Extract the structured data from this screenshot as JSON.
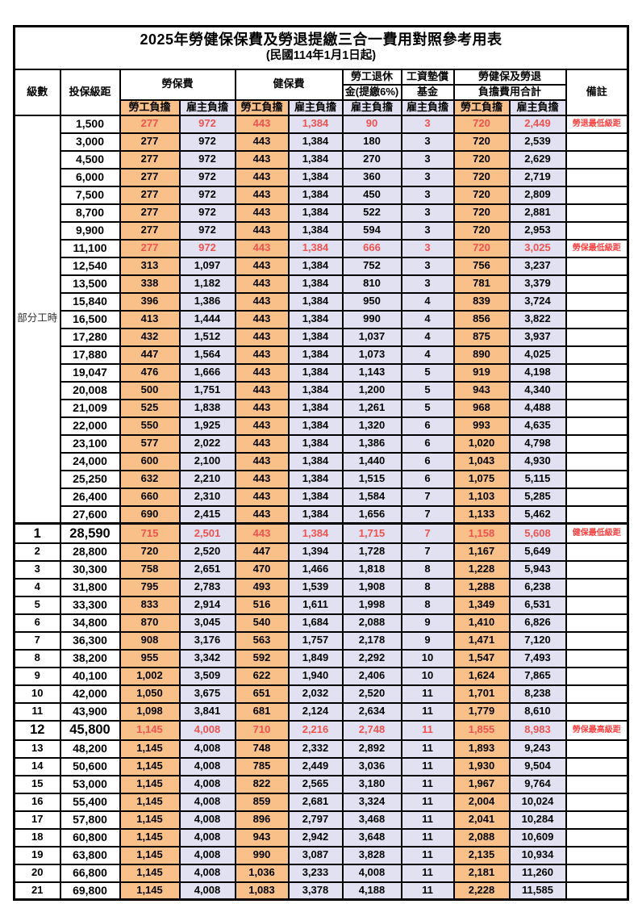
{
  "title": "2025年勞健保保費及勞退提繳三合一費用對照參考用表",
  "subtitle": "(民國114年1月1日起)",
  "header": {
    "level": "級數",
    "bracket": "投保級距",
    "labor_ins": "勞保費",
    "health_ins": "健保費",
    "pension_line1": "勞工退休",
    "pension_line2": "金(提繳6%)",
    "wage_fund_line1": "工資墊償",
    "wage_fund_line2": "基金",
    "total_line1": "勞健保及勞退",
    "total_line2": "負擔費用合計",
    "note": "備註",
    "worker": "勞工負擔",
    "employer": "雇主負擔"
  },
  "part_time_label": "部分工時",
  "colors": {
    "worker_bg": "#F9C189",
    "employer_bg": "#E2E1F1",
    "highlight_red": "#EF5350",
    "note_red": "#FF4040"
  },
  "rows": [
    {
      "lv": "",
      "br": "1,500",
      "lw": "277",
      "le": "972",
      "hw": "443",
      "he": "1,384",
      "pe": "90",
      "fe": "3",
      "tw": "720",
      "te": "2,449",
      "note": "勞退最低級距",
      "hl": true
    },
    {
      "lv": "",
      "br": "3,000",
      "lw": "277",
      "le": "972",
      "hw": "443",
      "he": "1,384",
      "pe": "180",
      "fe": "3",
      "tw": "720",
      "te": "2,539",
      "note": ""
    },
    {
      "lv": "",
      "br": "4,500",
      "lw": "277",
      "le": "972",
      "hw": "443",
      "he": "1,384",
      "pe": "270",
      "fe": "3",
      "tw": "720",
      "te": "2,629",
      "note": ""
    },
    {
      "lv": "",
      "br": "6,000",
      "lw": "277",
      "le": "972",
      "hw": "443",
      "he": "1,384",
      "pe": "360",
      "fe": "3",
      "tw": "720",
      "te": "2,719",
      "note": ""
    },
    {
      "lv": "",
      "br": "7,500",
      "lw": "277",
      "le": "972",
      "hw": "443",
      "he": "1,384",
      "pe": "450",
      "fe": "3",
      "tw": "720",
      "te": "2,809",
      "note": ""
    },
    {
      "lv": "",
      "br": "8,700",
      "lw": "277",
      "le": "972",
      "hw": "443",
      "he": "1,384",
      "pe": "522",
      "fe": "3",
      "tw": "720",
      "te": "2,881",
      "note": ""
    },
    {
      "lv": "",
      "br": "9,900",
      "lw": "277",
      "le": "972",
      "hw": "443",
      "he": "1,384",
      "pe": "594",
      "fe": "3",
      "tw": "720",
      "te": "2,953",
      "note": ""
    },
    {
      "lv": "",
      "br": "11,100",
      "lw": "277",
      "le": "972",
      "hw": "443",
      "he": "1,384",
      "pe": "666",
      "fe": "3",
      "tw": "720",
      "te": "3,025",
      "note": "勞保最低級距",
      "hl": true
    },
    {
      "lv": "",
      "br": "12,540",
      "lw": "313",
      "le": "1,097",
      "hw": "443",
      "he": "1,384",
      "pe": "752",
      "fe": "3",
      "tw": "756",
      "te": "3,237",
      "note": ""
    },
    {
      "lv": "",
      "br": "13,500",
      "lw": "338",
      "le": "1,182",
      "hw": "443",
      "he": "1,384",
      "pe": "810",
      "fe": "3",
      "tw": "781",
      "te": "3,379",
      "note": ""
    },
    {
      "lv": "",
      "br": "15,840",
      "lw": "396",
      "le": "1,386",
      "hw": "443",
      "he": "1,384",
      "pe": "950",
      "fe": "4",
      "tw": "839",
      "te": "3,724",
      "note": ""
    },
    {
      "lv": "",
      "br": "16,500",
      "lw": "413",
      "le": "1,444",
      "hw": "443",
      "he": "1,384",
      "pe": "990",
      "fe": "4",
      "tw": "856",
      "te": "3,822",
      "note": ""
    },
    {
      "lv": "",
      "br": "17,280",
      "lw": "432",
      "le": "1,512",
      "hw": "443",
      "he": "1,384",
      "pe": "1,037",
      "fe": "4",
      "tw": "875",
      "te": "3,937",
      "note": ""
    },
    {
      "lv": "",
      "br": "17,880",
      "lw": "447",
      "le": "1,564",
      "hw": "443",
      "he": "1,384",
      "pe": "1,073",
      "fe": "4",
      "tw": "890",
      "te": "4,025",
      "note": ""
    },
    {
      "lv": "",
      "br": "19,047",
      "lw": "476",
      "le": "1,666",
      "hw": "443",
      "he": "1,384",
      "pe": "1,143",
      "fe": "5",
      "tw": "919",
      "te": "4,198",
      "note": ""
    },
    {
      "lv": "",
      "br": "20,008",
      "lw": "500",
      "le": "1,751",
      "hw": "443",
      "he": "1,384",
      "pe": "1,200",
      "fe": "5",
      "tw": "943",
      "te": "4,340",
      "note": ""
    },
    {
      "lv": "",
      "br": "21,009",
      "lw": "525",
      "le": "1,838",
      "hw": "443",
      "he": "1,384",
      "pe": "1,261",
      "fe": "5",
      "tw": "968",
      "te": "4,488",
      "note": ""
    },
    {
      "lv": "",
      "br": "22,000",
      "lw": "550",
      "le": "1,925",
      "hw": "443",
      "he": "1,384",
      "pe": "1,320",
      "fe": "6",
      "tw": "993",
      "te": "4,635",
      "note": ""
    },
    {
      "lv": "",
      "br": "23,100",
      "lw": "577",
      "le": "2,022",
      "hw": "443",
      "he": "1,384",
      "pe": "1,386",
      "fe": "6",
      "tw": "1,020",
      "te": "4,798",
      "note": ""
    },
    {
      "lv": "",
      "br": "24,000",
      "lw": "600",
      "le": "2,100",
      "hw": "443",
      "he": "1,384",
      "pe": "1,440",
      "fe": "6",
      "tw": "1,043",
      "te": "4,930",
      "note": ""
    },
    {
      "lv": "",
      "br": "25,250",
      "lw": "632",
      "le": "2,210",
      "hw": "443",
      "he": "1,384",
      "pe": "1,515",
      "fe": "6",
      "tw": "1,075",
      "te": "5,115",
      "note": ""
    },
    {
      "lv": "",
      "br": "26,400",
      "lw": "660",
      "le": "2,310",
      "hw": "443",
      "he": "1,384",
      "pe": "1,584",
      "fe": "7",
      "tw": "1,103",
      "te": "5,285",
      "note": ""
    },
    {
      "lv": "",
      "br": "27,600",
      "lw": "690",
      "le": "2,415",
      "hw": "443",
      "he": "1,384",
      "pe": "1,656",
      "fe": "7",
      "tw": "1,133",
      "te": "5,462",
      "note": ""
    },
    {
      "lv": "1",
      "br": "28,590",
      "lw": "715",
      "le": "2,501",
      "hw": "443",
      "he": "1,384",
      "pe": "1,715",
      "fe": "7",
      "tw": "1,158",
      "te": "5,608",
      "note": "健保最低級距",
      "hl": true,
      "big": true,
      "sep": true
    },
    {
      "lv": "2",
      "br": "28,800",
      "lw": "720",
      "le": "2,520",
      "hw": "447",
      "he": "1,394",
      "pe": "1,728",
      "fe": "7",
      "tw": "1,167",
      "te": "5,649",
      "note": ""
    },
    {
      "lv": "3",
      "br": "30,300",
      "lw": "758",
      "le": "2,651",
      "hw": "470",
      "he": "1,466",
      "pe": "1,818",
      "fe": "8",
      "tw": "1,228",
      "te": "5,943",
      "note": ""
    },
    {
      "lv": "4",
      "br": "31,800",
      "lw": "795",
      "le": "2,783",
      "hw": "493",
      "he": "1,539",
      "pe": "1,908",
      "fe": "8",
      "tw": "1,288",
      "te": "6,238",
      "note": ""
    },
    {
      "lv": "5",
      "br": "33,300",
      "lw": "833",
      "le": "2,914",
      "hw": "516",
      "he": "1,611",
      "pe": "1,998",
      "fe": "8",
      "tw": "1,349",
      "te": "6,531",
      "note": ""
    },
    {
      "lv": "6",
      "br": "34,800",
      "lw": "870",
      "le": "3,045",
      "hw": "540",
      "he": "1,684",
      "pe": "2,088",
      "fe": "9",
      "tw": "1,410",
      "te": "6,826",
      "note": ""
    },
    {
      "lv": "7",
      "br": "36,300",
      "lw": "908",
      "le": "3,176",
      "hw": "563",
      "he": "1,757",
      "pe": "2,178",
      "fe": "9",
      "tw": "1,471",
      "te": "7,120",
      "note": ""
    },
    {
      "lv": "8",
      "br": "38,200",
      "lw": "955",
      "le": "3,342",
      "hw": "592",
      "he": "1,849",
      "pe": "2,292",
      "fe": "10",
      "tw": "1,547",
      "te": "7,493",
      "note": ""
    },
    {
      "lv": "9",
      "br": "40,100",
      "lw": "1,002",
      "le": "3,509",
      "hw": "622",
      "he": "1,940",
      "pe": "2,406",
      "fe": "10",
      "tw": "1,624",
      "te": "7,865",
      "note": ""
    },
    {
      "lv": "10",
      "br": "42,000",
      "lw": "1,050",
      "le": "3,675",
      "hw": "651",
      "he": "2,032",
      "pe": "2,520",
      "fe": "11",
      "tw": "1,701",
      "te": "8,238",
      "note": ""
    },
    {
      "lv": "11",
      "br": "43,900",
      "lw": "1,098",
      "le": "3,841",
      "hw": "681",
      "he": "2,124",
      "pe": "2,634",
      "fe": "11",
      "tw": "1,779",
      "te": "8,610",
      "note": ""
    },
    {
      "lv": "12",
      "br": "45,800",
      "lw": "1,145",
      "le": "4,008",
      "hw": "710",
      "he": "2,216",
      "pe": "2,748",
      "fe": "11",
      "tw": "1,855",
      "te": "8,983",
      "note": "勞保最高級距",
      "hl": true,
      "big": true
    },
    {
      "lv": "13",
      "br": "48,200",
      "lw": "1,145",
      "le": "4,008",
      "hw": "748",
      "he": "2,332",
      "pe": "2,892",
      "fe": "11",
      "tw": "1,893",
      "te": "9,243",
      "note": ""
    },
    {
      "lv": "14",
      "br": "50,600",
      "lw": "1,145",
      "le": "4,008",
      "hw": "785",
      "he": "2,449",
      "pe": "3,036",
      "fe": "11",
      "tw": "1,930",
      "te": "9,504",
      "note": ""
    },
    {
      "lv": "15",
      "br": "53,000",
      "lw": "1,145",
      "le": "4,008",
      "hw": "822",
      "he": "2,565",
      "pe": "3,180",
      "fe": "11",
      "tw": "1,967",
      "te": "9,764",
      "note": ""
    },
    {
      "lv": "16",
      "br": "55,400",
      "lw": "1,145",
      "le": "4,008",
      "hw": "859",
      "he": "2,681",
      "pe": "3,324",
      "fe": "11",
      "tw": "2,004",
      "te": "10,024",
      "note": ""
    },
    {
      "lv": "17",
      "br": "57,800",
      "lw": "1,145",
      "le": "4,008",
      "hw": "896",
      "he": "2,797",
      "pe": "3,468",
      "fe": "11",
      "tw": "2,041",
      "te": "10,284",
      "note": ""
    },
    {
      "lv": "18",
      "br": "60,800",
      "lw": "1,145",
      "le": "4,008",
      "hw": "943",
      "he": "2,942",
      "pe": "3,648",
      "fe": "11",
      "tw": "2,088",
      "te": "10,609",
      "note": ""
    },
    {
      "lv": "19",
      "br": "63,800",
      "lw": "1,145",
      "le": "4,008",
      "hw": "990",
      "he": "3,087",
      "pe": "3,828",
      "fe": "11",
      "tw": "2,135",
      "te": "10,934",
      "note": ""
    },
    {
      "lv": "20",
      "br": "66,800",
      "lw": "1,145",
      "le": "4,008",
      "hw": "1,036",
      "he": "3,233",
      "pe": "4,008",
      "fe": "11",
      "tw": "2,181",
      "te": "11,260",
      "note": ""
    },
    {
      "lv": "21",
      "br": "69,800",
      "lw": "1,145",
      "le": "4,008",
      "hw": "1,083",
      "he": "3,378",
      "pe": "4,188",
      "fe": "11",
      "tw": "2,228",
      "te": "11,585",
      "note": ""
    }
  ]
}
